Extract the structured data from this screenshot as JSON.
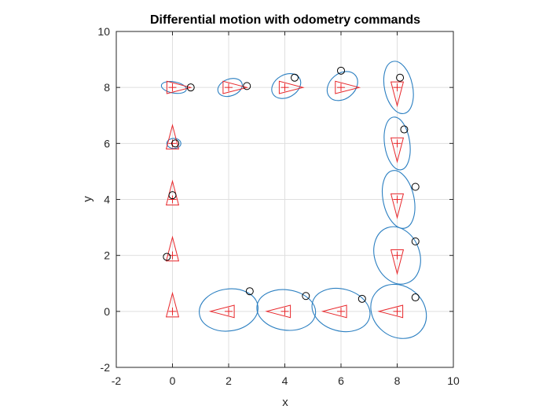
{
  "chart_data": {
    "type": "scatter",
    "title": "Differential motion with odometry commands",
    "xlabel": "x",
    "ylabel": "y",
    "xlim": [
      -2,
      10
    ],
    "ylim": [
      -2,
      10
    ],
    "xticks": [
      -2,
      0,
      2,
      4,
      6,
      8,
      10
    ],
    "yticks": [
      -2,
      0,
      2,
      4,
      6,
      8,
      10
    ],
    "x_tick_labels": [
      "-2",
      "0",
      "2",
      "4",
      "6",
      "8",
      "10"
    ],
    "y_tick_labels": [
      "-2",
      "0",
      "2",
      "4",
      "6",
      "8",
      "10"
    ],
    "grid": true,
    "legend": "none",
    "colors": {
      "pose": "#e8262a",
      "ellipse": "#2b7fc1",
      "measurement": "#000000",
      "grid": "#dfdfdf",
      "axis": "#262626"
    },
    "series": [
      {
        "kind": "robot-pose",
        "points": [
          {
            "x": 0,
            "y": 0,
            "heading": 90
          },
          {
            "x": 0,
            "y": 2,
            "heading": 90
          },
          {
            "x": 0,
            "y": 4,
            "heading": 90
          },
          {
            "x": 0,
            "y": 6,
            "heading": 90
          },
          {
            "x": 0,
            "y": 8,
            "heading": 0
          },
          {
            "x": 2,
            "y": 8,
            "heading": 0
          },
          {
            "x": 4,
            "y": 8,
            "heading": 0
          },
          {
            "x": 6,
            "y": 8,
            "heading": 0
          },
          {
            "x": 8,
            "y": 8,
            "heading": -90
          },
          {
            "x": 8,
            "y": 6,
            "heading": -90
          },
          {
            "x": 8,
            "y": 4,
            "heading": -90
          },
          {
            "x": 8,
            "y": 2,
            "heading": -90
          },
          {
            "x": 8,
            "y": 0,
            "heading": 180
          },
          {
            "x": 6,
            "y": 0,
            "heading": 180
          },
          {
            "x": 4,
            "y": 0,
            "heading": 180
          },
          {
            "x": 2,
            "y": 0,
            "heading": 180
          }
        ]
      },
      {
        "kind": "covariance-ellipse",
        "points": [
          {
            "cx": 0.05,
            "cy": 6.0,
            "rx": 0.25,
            "ry": 0.18,
            "angle": 0
          },
          {
            "cx": 0.05,
            "cy": 8.0,
            "rx": 0.45,
            "ry": 0.2,
            "angle": 10
          },
          {
            "cx": 2.05,
            "cy": 8.0,
            "rx": 0.45,
            "ry": 0.3,
            "angle": -20
          },
          {
            "cx": 4.05,
            "cy": 8.05,
            "rx": 0.55,
            "ry": 0.4,
            "angle": -30
          },
          {
            "cx": 6.05,
            "cy": 8.05,
            "rx": 0.6,
            "ry": 0.45,
            "angle": -40
          },
          {
            "cx": 8.05,
            "cy": 8.0,
            "rx": 0.5,
            "ry": 0.95,
            "angle": -12
          },
          {
            "cx": 8.0,
            "cy": 6.0,
            "rx": 0.45,
            "ry": 0.95,
            "angle": -8
          },
          {
            "cx": 8.05,
            "cy": 4.0,
            "rx": 0.55,
            "ry": 1.05,
            "angle": -12
          },
          {
            "cx": 8.0,
            "cy": 2.0,
            "rx": 0.8,
            "ry": 1.05,
            "angle": -20
          },
          {
            "cx": 8.05,
            "cy": 0.0,
            "rx": 1.05,
            "ry": 0.9,
            "angle": 40
          },
          {
            "cx": 6.0,
            "cy": 0.05,
            "rx": 1.05,
            "ry": 0.75,
            "angle": 15
          },
          {
            "cx": 4.05,
            "cy": 0.05,
            "rx": 1.05,
            "ry": 0.72,
            "angle": 8
          },
          {
            "cx": 2.0,
            "cy": 0.05,
            "rx": 1.05,
            "ry": 0.75,
            "angle": -8
          }
        ]
      },
      {
        "kind": "measurement",
        "points": [
          {
            "x": -0.2,
            "y": 1.95
          },
          {
            "x": 0.0,
            "y": 4.15
          },
          {
            "x": 0.1,
            "y": 6.0
          },
          {
            "x": 0.65,
            "y": 8.0
          },
          {
            "x": 2.65,
            "y": 8.05
          },
          {
            "x": 4.35,
            "y": 8.35
          },
          {
            "x": 6.0,
            "y": 8.6
          },
          {
            "x": 8.1,
            "y": 8.35
          },
          {
            "x": 8.25,
            "y": 6.5
          },
          {
            "x": 8.65,
            "y": 4.45
          },
          {
            "x": 8.65,
            "y": 2.5
          },
          {
            "x": 8.65,
            "y": 0.5
          },
          {
            "x": 6.75,
            "y": 0.45
          },
          {
            "x": 4.75,
            "y": 0.55
          },
          {
            "x": 2.75,
            "y": 0.72
          }
        ]
      }
    ]
  }
}
